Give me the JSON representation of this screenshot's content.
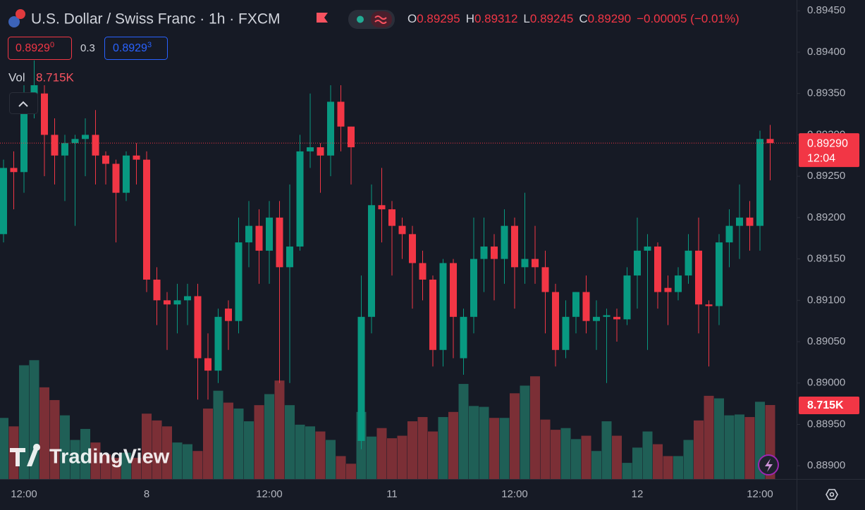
{
  "chart_data": {
    "type": "candlestick",
    "title": "U.S. Dollar / Swiss Franc · 1h · FXCM",
    "legend": {
      "fields": [
        {
          "key": "O",
          "value": "0.89295"
        },
        {
          "key": "H",
          "value": "0.89312"
        },
        {
          "key": "L",
          "value": "0.89245"
        },
        {
          "key": "C",
          "value": "0.89290"
        }
      ],
      "change": "−0.00005 (−0.01%)"
    },
    "trade": {
      "sell": "0.8929",
      "sell_pip": "0",
      "spread": "0.3",
      "buy": "0.8929",
      "buy_pip": "3"
    },
    "watermark": "TradingView",
    "last_price_label": "0.89290",
    "countdown": "12:04",
    "up_color": "#089981",
    "down_color": "#f23645",
    "grid": false,
    "categories": [
      null,
      null,
      "12:00",
      null,
      null,
      null,
      null,
      null,
      null,
      null,
      null,
      null,
      null,
      null,
      "8",
      null,
      null,
      null,
      null,
      null,
      null,
      null,
      null,
      null,
      null,
      null,
      "12:00",
      null,
      null,
      null,
      null,
      null,
      null,
      null,
      null,
      null,
      null,
      null,
      "11",
      null,
      null,
      null,
      null,
      null,
      null,
      null,
      null,
      null,
      null,
      null,
      "12:00",
      null,
      null,
      null,
      null,
      null,
      null,
      null,
      null,
      null,
      null,
      null,
      "12",
      null,
      null,
      null,
      null,
      null,
      null,
      null,
      null,
      null,
      null,
      null,
      "12:00",
      null
    ],
    "open": [
      0.8918,
      0.8926,
      0.89255,
      0.8934,
      0.8935,
      0.893,
      0.89275,
      0.8929,
      0.89295,
      0.893,
      0.89275,
      0.89265,
      0.8923,
      0.89275,
      0.8927,
      0.89125,
      0.891,
      0.89095,
      0.891,
      0.89105,
      0.8903,
      0.89015,
      0.8909,
      0.89075,
      0.8917,
      0.8919,
      0.8916,
      0.892,
      0.8914,
      0.89165,
      0.8928,
      0.89285,
      0.89275,
      0.8934,
      0.8931,
      0.8893,
      0.8908,
      0.89215,
      0.8921,
      0.8919,
      0.8918,
      0.89145,
      0.89125,
      0.8904,
      0.89145,
      0.8903,
      0.8908,
      0.8915,
      0.89165,
      0.8915,
      0.8919,
      0.8914,
      0.8915,
      0.8914,
      0.8911,
      0.8904,
      0.8908,
      0.8911,
      0.89075,
      0.8908,
      0.8908,
      0.89077,
      0.8913,
      0.8916,
      0.89165,
      0.89115,
      0.8911,
      0.8913,
      0.8916,
      0.89095,
      0.89093,
      0.8917,
      0.8919,
      0.892,
      0.8919,
      0.89295
    ],
    "high": [
      0.8927,
      0.8928,
      0.8936,
      0.8939,
      0.8936,
      0.8932,
      0.893,
      0.893,
      0.8932,
      0.8933,
      0.8928,
      0.8927,
      0.8928,
      0.8929,
      0.8928,
      0.8914,
      0.8911,
      0.8912,
      0.8912,
      0.8912,
      0.8906,
      0.8909,
      0.891,
      0.892,
      0.8922,
      0.8921,
      0.8922,
      0.8922,
      0.8924,
      0.893,
      0.8935,
      0.8929,
      0.8936,
      0.8936,
      0.8931,
      0.8913,
      0.8924,
      0.8926,
      0.8922,
      0.892,
      0.8919,
      0.8916,
      0.8913,
      0.8915,
      0.8915,
      0.8909,
      0.892,
      0.892,
      0.8918,
      0.8921,
      0.892,
      0.8923,
      0.8919,
      0.8916,
      0.8912,
      0.891,
      0.8911,
      0.8913,
      0.891,
      0.8909,
      0.8909,
      0.8914,
      0.892,
      0.8918,
      0.8917,
      0.8913,
      0.8914,
      0.8918,
      0.892,
      0.891,
      0.8918,
      0.8921,
      0.8924,
      0.8922,
      0.89305,
      0.89312
    ],
    "low": [
      0.8917,
      0.8921,
      0.8923,
      0.8932,
      0.8925,
      0.8924,
      0.8922,
      0.8919,
      0.8925,
      0.8924,
      0.8924,
      0.8917,
      0.8922,
      0.8924,
      0.8911,
      0.8907,
      0.8904,
      0.8906,
      0.8907,
      0.8898,
      0.8898,
      0.89,
      0.8904,
      0.8906,
      0.8914,
      0.8912,
      0.8912,
      0.89,
      0.89,
      0.8916,
      0.8926,
      0.8923,
      0.8925,
      0.8928,
      0.8924,
      0.8892,
      0.8906,
      0.8917,
      0.8913,
      0.8915,
      0.8909,
      0.891,
      0.8902,
      0.8902,
      0.8903,
      0.8901,
      0.8906,
      0.8911,
      0.891,
      0.8912,
      0.8909,
      0.8912,
      0.8912,
      0.8906,
      0.8902,
      0.8903,
      0.8906,
      0.8906,
      0.8904,
      0.89,
      0.8905,
      0.8907,
      0.8909,
      0.8904,
      0.8909,
      0.8907,
      0.891,
      0.8912,
      0.8906,
      0.8902,
      0.8907,
      0.8914,
      0.8915,
      0.8916,
      0.8916,
      0.89245
    ],
    "close": [
      0.8926,
      0.89255,
      0.8934,
      0.8936,
      0.893,
      0.89275,
      0.8929,
      0.89295,
      0.893,
      0.89275,
      0.89265,
      0.8923,
      0.89275,
      0.8927,
      0.89125,
      0.891,
      0.89095,
      0.891,
      0.89105,
      0.8903,
      0.89015,
      0.8908,
      0.89075,
      0.8917,
      0.8919,
      0.8916,
      0.892,
      0.8914,
      0.89165,
      0.8928,
      0.89285,
      0.89275,
      0.8934,
      0.8931,
      0.89285,
      0.8908,
      0.89215,
      0.8921,
      0.8919,
      0.8918,
      0.89145,
      0.89125,
      0.8904,
      0.89145,
      0.8908,
      0.8908,
      0.8915,
      0.89165,
      0.8915,
      0.8919,
      0.8914,
      0.8915,
      0.8914,
      0.8911,
      0.8904,
      0.8908,
      0.8911,
      0.89075,
      0.8908,
      0.89082,
      0.89077,
      0.8913,
      0.8916,
      0.89165,
      0.8911,
      0.8911,
      0.8913,
      0.8916,
      0.89095,
      0.89093,
      0.8917,
      0.8919,
      0.892,
      0.8919,
      0.89295,
      0.8929
    ],
    "volume": {
      "name": "Vol",
      "values": [
        7.2,
        6.2,
        13.4,
        14.0,
        10.8,
        9.3,
        7.5,
        4.6,
        5.9,
        4.3,
        2.9,
        2.5,
        3.1,
        2.5,
        7.7,
        6.9,
        6.2,
        4.3,
        4.1,
        3.3,
        8.3,
        10.4,
        9.0,
        8.3,
        6.8,
        8.7,
        10.0,
        11.6,
        8.7,
        6.4,
        6.2,
        5.6,
        4.6,
        2.7,
        1.8,
        7.9,
        5.0,
        6.0,
        4.8,
        5.1,
        6.8,
        7.3,
        5.6,
        7.3,
        7.9,
        11.2,
        8.6,
        8.5,
        7.2,
        7.2,
        10.1,
        11.0,
        12.1,
        7.0,
        5.8,
        6.0,
        4.7,
        5.1,
        3.3,
        6.8,
        5.1,
        1.9,
        3.7,
        5.6,
        4.1,
        2.7,
        2.7,
        4.6,
        6.9,
        9.8,
        9.5,
        7.5,
        7.6,
        7.3,
        9.1,
        8.715
      ],
      "value_labels": [
        null,
        null,
        null,
        null,
        null,
        null,
        null,
        null,
        null,
        null,
        null,
        null,
        null,
        null,
        null,
        null,
        null,
        null,
        null,
        null,
        null,
        null,
        null,
        null,
        null,
        null,
        null,
        null,
        null,
        null,
        null,
        null,
        null,
        null,
        null,
        null,
        null,
        null,
        null,
        null,
        null,
        null,
        null,
        null,
        null,
        null,
        null,
        null,
        null,
        null,
        null,
        null,
        null,
        null,
        null,
        null,
        null,
        null,
        null,
        null,
        null,
        null,
        null,
        null,
        null,
        null,
        null,
        null,
        null,
        null,
        null,
        null,
        null,
        null,
        null,
        "8.715K"
      ]
    },
    "ylim": [
      0.88884,
      0.89463
    ],
    "yticks": [
      {
        "value": 0.8945,
        "label": "0.89450"
      },
      {
        "value": 0.894,
        "label": "0.89400"
      },
      {
        "value": 0.8935,
        "label": "0.89350"
      },
      {
        "value": 0.893,
        "label": "0.89300"
      },
      {
        "value": 0.8925,
        "label": "0.89250"
      },
      {
        "value": 0.892,
        "label": "0.89200"
      },
      {
        "value": 0.8915,
        "label": "0.89150"
      },
      {
        "value": 0.891,
        "label": "0.89100"
      },
      {
        "value": 0.8905,
        "label": "0.89050"
      },
      {
        "value": 0.89,
        "label": "0.89000"
      },
      {
        "value": 0.8895,
        "label": "0.88950"
      },
      {
        "value": 0.889,
        "label": "0.88900"
      }
    ]
  }
}
